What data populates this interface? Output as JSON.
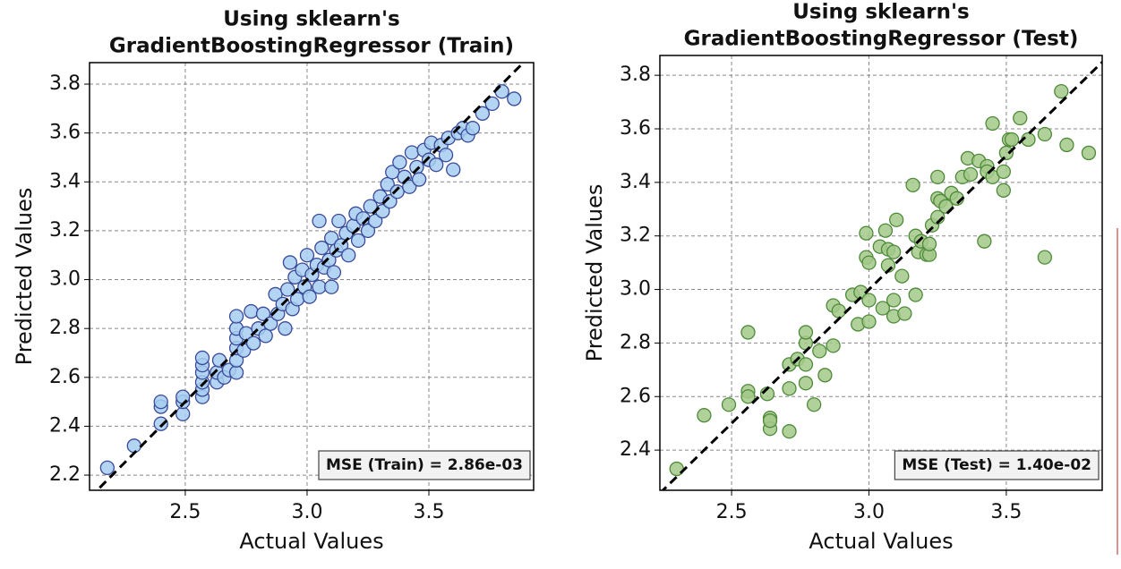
{
  "chart_data": [
    {
      "type": "scatter",
      "title": [
        "Using sklearn's",
        "GradientBoostingRegressor (Train)"
      ],
      "xlabel": "Actual Values",
      "ylabel": "Predicted Values",
      "annotation": "MSE (Train) = 2.86e-03",
      "color": "#a6cdf0",
      "edgecolor": "#3a4a9a",
      "grid": true,
      "diagonal": true,
      "xlim": [
        2.107,
        3.93
      ],
      "ylim": [
        2.138,
        3.888
      ],
      "xticks": [
        2.5,
        {
          "value": 3,
          "label": "3.0"
        },
        3.5
      ],
      "yticks": [
        2.2,
        2.4,
        2.6,
        2.8,
        {
          "value": 3,
          "label": "3.0"
        },
        3.2,
        3.4,
        3.6,
        3.8
      ],
      "x": [
        2.18,
        2.29,
        2.4,
        2.4,
        2.4,
        2.49,
        2.49,
        2.49,
        2.57,
        2.57,
        2.57,
        2.57,
        2.57,
        2.57,
        2.63,
        2.63,
        2.64,
        2.66,
        2.68,
        2.71,
        2.71,
        2.71,
        2.71,
        2.71,
        2.71,
        2.74,
        2.75,
        2.77,
        2.78,
        2.8,
        2.82,
        2.83,
        2.85,
        2.87,
        2.88,
        2.9,
        2.91,
        2.92,
        2.93,
        2.94,
        2.95,
        2.96,
        2.98,
        2.99,
        3.0,
        3.01,
        3.02,
        3.04,
        3.05,
        3.06,
        3.07,
        3.09,
        3.1,
        3.11,
        3.12,
        3.13,
        3.14,
        3.16,
        3.17,
        3.19,
        3.2,
        3.21,
        3.23,
        3.25,
        3.26,
        3.28,
        3.3,
        3.31,
        3.33,
        3.34,
        3.35,
        3.37,
        3.38,
        3.4,
        3.42,
        3.43,
        3.45,
        3.46,
        3.48,
        3.5,
        3.51,
        3.53,
        3.55,
        3.57,
        3.58,
        3.6,
        3.62,
        3.64,
        3.66,
        3.68,
        3.72,
        3.76,
        3.8,
        3.85,
        3.05,
        3.1
      ],
      "values": [
        2.23,
        2.32,
        2.41,
        2.48,
        2.5,
        2.45,
        2.5,
        2.52,
        2.52,
        2.55,
        2.58,
        2.62,
        2.65,
        2.68,
        2.58,
        2.62,
        2.67,
        2.6,
        2.63,
        2.62,
        2.67,
        2.72,
        2.76,
        2.8,
        2.85,
        2.71,
        2.78,
        2.87,
        2.74,
        2.8,
        2.86,
        2.77,
        2.82,
        2.94,
        2.86,
        2.9,
        2.8,
        2.96,
        3.07,
        2.88,
        3.01,
        2.92,
        3.04,
        2.97,
        3.1,
        2.93,
        3.02,
        3.06,
        2.97,
        3.13,
        3.05,
        3.08,
        3.17,
        3.03,
        3.12,
        3.24,
        3.14,
        3.19,
        3.1,
        3.22,
        3.27,
        3.16,
        3.25,
        3.2,
        3.3,
        3.24,
        3.34,
        3.28,
        3.39,
        3.32,
        3.44,
        3.36,
        3.48,
        3.42,
        3.38,
        3.52,
        3.46,
        3.41,
        3.53,
        3.49,
        3.56,
        3.47,
        3.55,
        3.51,
        3.58,
        3.45,
        3.6,
        3.62,
        3.59,
        3.62,
        3.68,
        3.72,
        3.77,
        3.74,
        3.24,
        2.97
      ]
    },
    {
      "type": "scatter",
      "title": [
        "Using sklearn's",
        "GradientBoostingRegressor (Test)"
      ],
      "xlabel": "Actual Values",
      "ylabel": "Predicted Values",
      "annotation": "MSE (Test) = 1.40e-02",
      "color": "#a3c98a",
      "edgecolor": "#4f8a3a",
      "grid": true,
      "diagonal": true,
      "xlim": [
        2.239,
        3.849
      ],
      "ylim": [
        2.25,
        3.874
      ],
      "xticks": [
        2.5,
        {
          "value": 3,
          "label": "3.0"
        },
        3.5
      ],
      "yticks": [
        2.4,
        2.6,
        2.8,
        {
          "value": 3,
          "label": "3.0"
        },
        3.2,
        3.4,
        3.6,
        3.8
      ],
      "x": [
        2.3,
        2.4,
        2.49,
        2.56,
        2.56,
        2.56,
        2.63,
        2.64,
        2.64,
        2.64,
        2.71,
        2.71,
        2.71,
        2.74,
        2.77,
        2.77,
        2.77,
        2.77,
        2.8,
        2.82,
        2.84,
        2.87,
        2.87,
        2.89,
        2.94,
        2.96,
        2.97,
        2.99,
        2.99,
        3.0,
        3.0,
        3.0,
        3.04,
        3.05,
        3.06,
        3.07,
        3.07,
        3.09,
        3.09,
        3.09,
        3.1,
        3.12,
        3.13,
        3.16,
        3.17,
        3.17,
        3.18,
        3.19,
        3.21,
        3.22,
        3.22,
        3.23,
        3.25,
        3.25,
        3.25,
        3.26,
        3.28,
        3.3,
        3.32,
        3.34,
        3.36,
        3.37,
        3.4,
        3.42,
        3.43,
        3.43,
        3.45,
        3.45,
        3.49,
        3.49,
        3.5,
        3.51,
        3.52,
        3.55,
        3.58,
        3.64,
        3.64,
        3.7,
        3.72,
        3.8
      ],
      "values": [
        2.33,
        2.53,
        2.57,
        2.84,
        2.62,
        2.6,
        2.61,
        2.52,
        2.48,
        2.51,
        2.47,
        2.63,
        2.72,
        2.74,
        2.65,
        2.72,
        2.8,
        2.84,
        2.57,
        2.77,
        2.68,
        2.79,
        2.94,
        2.92,
        2.98,
        2.87,
        2.99,
        3.21,
        3.12,
        3.1,
        2.88,
        2.96,
        3.16,
        2.93,
        3.22,
        3.15,
        3.09,
        3.14,
        2.96,
        2.9,
        3.26,
        3.05,
        2.91,
        3.39,
        2.98,
        3.2,
        3.14,
        3.18,
        3.13,
        3.13,
        3.17,
        3.24,
        3.34,
        3.27,
        3.42,
        3.33,
        3.31,
        3.36,
        3.34,
        3.42,
        3.49,
        3.43,
        3.48,
        3.18,
        3.46,
        3.44,
        3.62,
        3.42,
        3.37,
        3.44,
        3.51,
        3.56,
        3.56,
        3.64,
        3.56,
        3.58,
        3.12,
        3.74,
        3.54,
        3.51
      ]
    }
  ]
}
